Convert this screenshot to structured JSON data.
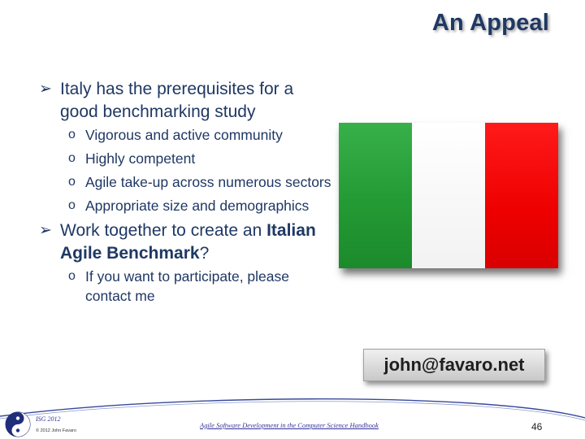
{
  "slide": {
    "title": "An Appeal",
    "bullets": [
      {
        "text": "Italy has the prerequisites for a good benchmarking study",
        "subs": [
          "Vigorous and active community",
          "Highly competent",
          "Agile take-up across numerous sectors",
          "Appropriate size and demographics"
        ]
      },
      {
        "text_before": "Work together to create an ",
        "text_bold": "Italian Agile Benchmark",
        "text_after": "?",
        "subs": [
          "If you want to participate, please contact me"
        ]
      }
    ],
    "bullet_marker": "➢",
    "sub_marker": "o",
    "email_box": "john@favaro.net"
  },
  "flag": {
    "colors": [
      "#249a34",
      "#ffffff",
      "#ee0000"
    ]
  },
  "footer": {
    "org": "ISG 2012",
    "copyright": "© 2012 John Favaro",
    "book_title": "Agile Software Development in the Computer Science Handbook",
    "page_number": "46"
  }
}
